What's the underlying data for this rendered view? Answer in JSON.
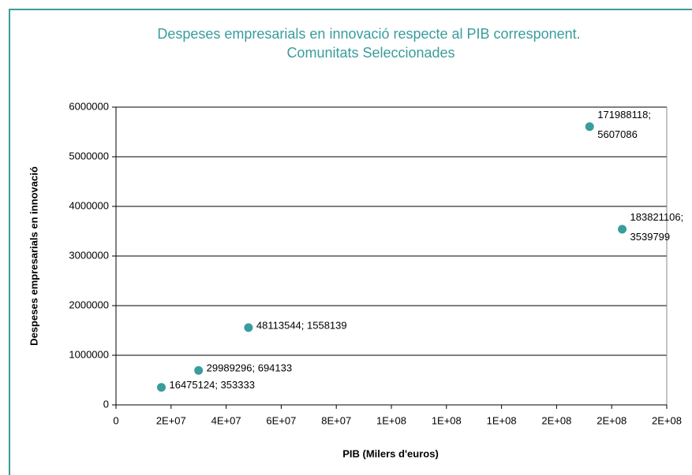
{
  "chart_data": {
    "type": "scatter",
    "title": "Despeses empresarials en innovació respecte al PIB corresponent. Comunitats Seleccionades",
    "xlabel": "PIB (Milers d'euros)",
    "ylabel": "Despeses empresarials en innovació",
    "series": [
      {
        "color": "#3a9c9c",
        "x": [
          16475124,
          29989296,
          48113544,
          171988118,
          183821106
        ],
        "values": [
          353333,
          694133,
          1558139,
          5607086,
          3539799
        ],
        "value_labels": [
          "16475124; 353333",
          "29989296; 694133",
          "48113544; 1558139",
          "171988118; 5607086",
          "183821106; 3539799"
        ]
      }
    ],
    "xlim": [
      0,
      200000000
    ],
    "xticks": [
      0,
      {
        "value": 20000000,
        "label": "2E+07"
      },
      {
        "value": 40000000,
        "label": "4E+07"
      },
      {
        "value": 60000000,
        "label": "6E+07"
      },
      {
        "value": 80000000,
        "label": "8E+07"
      },
      {
        "value": 100000000,
        "label": "1E+08"
      },
      {
        "value": 120000000,
        "label": "1E+08"
      },
      {
        "value": 140000000,
        "label": "1E+08"
      },
      {
        "value": 160000000,
        "label": "2E+08"
      },
      {
        "value": 180000000,
        "label": "2E+08"
      },
      {
        "value": 200000000,
        "label": "2E+08"
      }
    ],
    "ylim": [
      0,
      6000000
    ],
    "yticks": [
      0,
      1000000,
      2000000,
      3000000,
      4000000,
      5000000,
      6000000
    ],
    "grid": true
  }
}
